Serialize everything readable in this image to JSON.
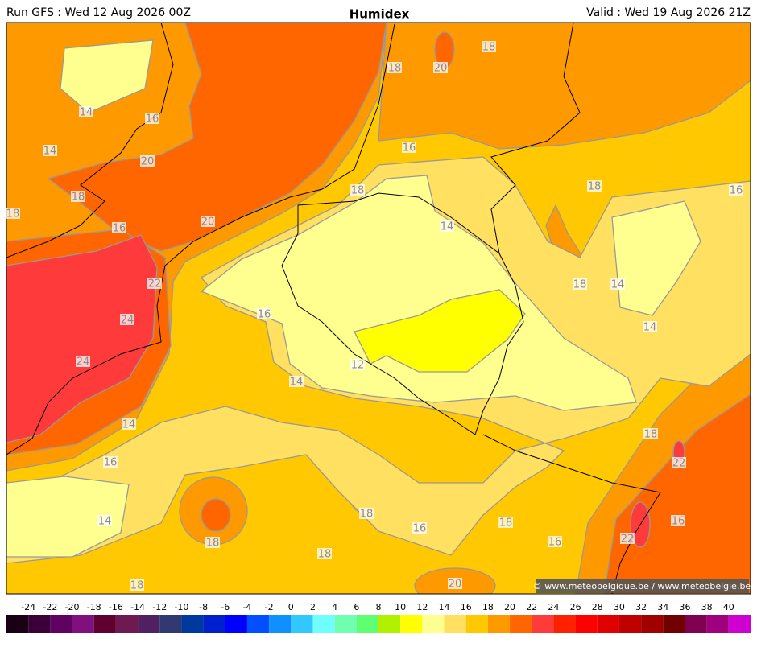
{
  "header": {
    "run": "Run GFS : Wed 12 Aug 2026 00Z",
    "title": "Humidex",
    "valid": "Valid : Wed 19 Aug 2026 21Z"
  },
  "contour_labels": [
    14,
    16,
    14,
    20,
    18,
    18,
    16,
    20,
    22,
    24,
    24,
    16,
    14,
    12,
    14,
    16,
    14,
    18,
    18,
    18,
    16,
    18,
    16,
    20,
    18,
    18,
    20,
    18,
    16,
    18,
    14,
    18,
    16,
    18,
    14,
    14,
    18,
    22,
    16,
    22
  ],
  "credit": "© www.meteobelgique.be / www.meteobelgie.be",
  "colorbar": {
    "ticks": [
      -24,
      -22,
      -20,
      -18,
      -16,
      -14,
      -12,
      -10,
      -8,
      -6,
      -4,
      -2,
      0,
      2,
      4,
      6,
      8,
      10,
      12,
      14,
      16,
      18,
      20,
      22,
      24,
      26,
      28,
      30,
      32,
      34,
      36,
      38,
      40
    ],
    "colors": [
      "#1a0014",
      "#3a0038",
      "#600060",
      "#801080",
      "#600030",
      "#701850",
      "#502060",
      "#303a70",
      "#0038a0",
      "#0020d0",
      "#0000ff",
      "#0050ff",
      "#1090ff",
      "#30c8ff",
      "#70ffff",
      "#70ffb0",
      "#60ff70",
      "#b0f000",
      "#ffff00",
      "#ffff90",
      "#ffe060",
      "#ffc800",
      "#ff9900",
      "#ff6600",
      "#ff3a3a",
      "#ff2000",
      "#ff0000",
      "#e00000",
      "#c00000",
      "#a00000",
      "#700000",
      "#800050",
      "#a00080",
      "#d000d0"
    ]
  }
}
